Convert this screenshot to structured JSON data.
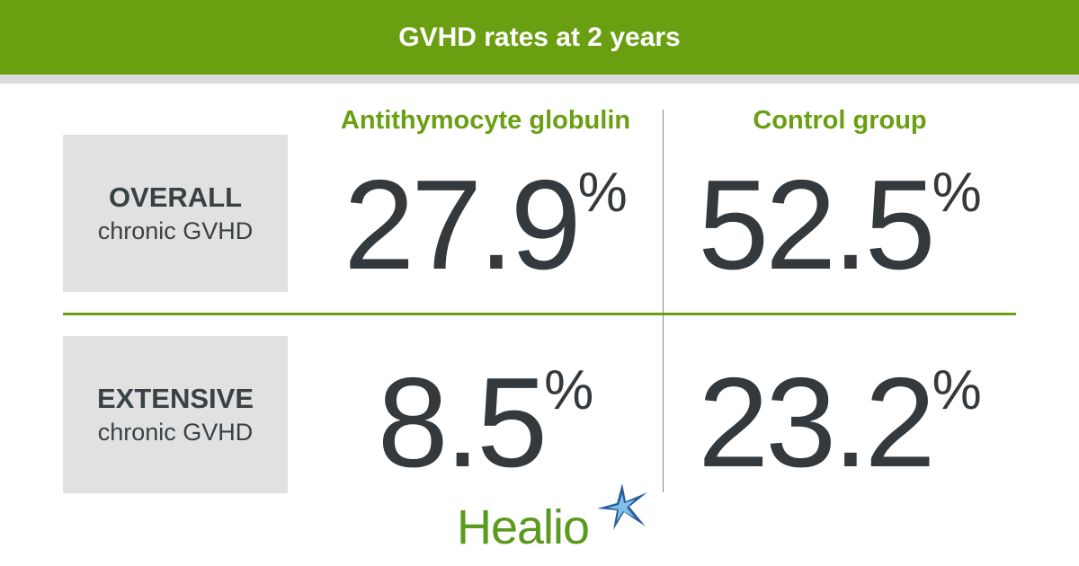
{
  "header": {
    "title": "GVHD rates at 2 years"
  },
  "columns": [
    "Antithymocyte globulin",
    "Control group"
  ],
  "rows": [
    {
      "label": "OVERALL",
      "sublabel": "chronic GVHD",
      "cells": [
        {
          "value": 27.9,
          "unit": "%"
        },
        {
          "value": 52.5,
          "unit": "%"
        }
      ]
    },
    {
      "label": "EXTENSIVE",
      "sublabel": "chronic GVHD",
      "cells": [
        {
          "value": 8.5,
          "unit": "%"
        },
        {
          "value": 23.2,
          "unit": "%"
        }
      ]
    }
  ],
  "logo": "Healio"
}
